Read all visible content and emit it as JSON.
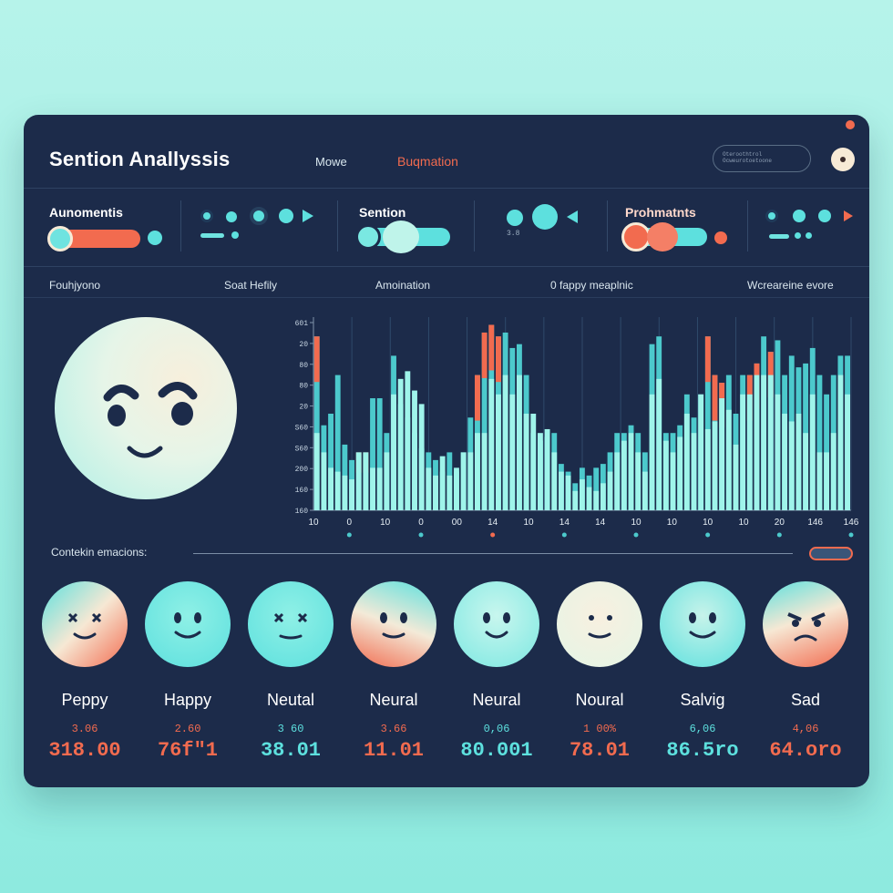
{
  "app": {
    "title": "Sention Anallyssis",
    "nav": [
      "Mowe",
      "Buqmation"
    ],
    "search_placeholder_lines": [
      "Oteroothtrol",
      "Ocweurotoetoone"
    ]
  },
  "controls": {
    "group1": {
      "label": "Aunomentis"
    },
    "group2": {
      "label": "Sention",
      "tiny": "3.8"
    },
    "group3": {
      "label": "Prohmatnts"
    }
  },
  "section_headers": [
    "Fouhjyono",
    "Soat Hefily",
    "Amoination",
    "0 fappy meaplnic",
    "Wcreareine evore"
  ],
  "chart_data": {
    "type": "bar",
    "y_ticks": [
      "601",
      "20",
      "80",
      "80",
      "20",
      "S60",
      "S60",
      "200",
      "160",
      "160"
    ],
    "x_ticks": [
      "10",
      "0",
      "10",
      "0",
      "00",
      "14",
      "10",
      "14",
      "14",
      "10",
      "10",
      "10",
      "10",
      "20",
      "146",
      "146"
    ],
    "ylim": [
      0,
      100
    ],
    "series": [
      {
        "values": [
          40,
          30,
          22,
          20,
          18,
          16,
          30,
          30,
          22,
          22,
          30,
          60,
          68,
          72,
          62,
          55,
          22,
          18,
          28,
          18,
          22,
          30,
          30,
          40,
          40,
          68,
          60,
          70,
          60,
          70,
          50,
          50,
          40,
          42,
          30,
          20,
          18,
          10,
          16,
          12,
          10,
          14,
          20,
          30,
          36,
          40,
          30,
          20,
          60,
          68,
          36,
          30,
          38,
          50,
          40,
          60,
          42,
          46,
          58,
          52,
          34,
          60,
          60,
          70,
          70,
          70,
          60,
          50,
          46,
          50,
          40,
          60,
          30,
          30,
          40,
          70,
          60
        ]
      },
      {
        "values": [
          90,
          44,
          50,
          70,
          34,
          26,
          30,
          30,
          58,
          58,
          40,
          80,
          55,
          48,
          40,
          32,
          30,
          26,
          20,
          30,
          20,
          30,
          48,
          70,
          92,
          96,
          90,
          92,
          84,
          86,
          70,
          40,
          36,
          38,
          40,
          24,
          20,
          14,
          22,
          18,
          22,
          24,
          30,
          40,
          40,
          44,
          40,
          30,
          86,
          90,
          40,
          40,
          44,
          60,
          48,
          60,
          90,
          70,
          66,
          70,
          50,
          70,
          70,
          76,
          90,
          82,
          88,
          70,
          80,
          74,
          76,
          84,
          70,
          60,
          70,
          80,
          80
        ]
      }
    ],
    "highlights": [
      0,
      6,
      7,
      23,
      24,
      25,
      26,
      56,
      57,
      58,
      62,
      63,
      65
    ]
  },
  "detection": {
    "label": "Contekin emacions:"
  },
  "emotions": [
    {
      "name": "Peppy",
      "small": "3.06",
      "big": "318.00",
      "tone": "orange"
    },
    {
      "name": "Happy",
      "small": "2.60",
      "big": "76f\"1",
      "tone": "orange"
    },
    {
      "name": "Neutal",
      "small": "3 60",
      "big": "38.01",
      "tone": "teal"
    },
    {
      "name": "Neural",
      "small": "3.66",
      "big": "11.01",
      "tone": "orange"
    },
    {
      "name": "Neural",
      "small": "0,06",
      "big": "80.001",
      "tone": "teal"
    },
    {
      "name": "Noural",
      "small": "1 00%",
      "big": "78.01",
      "tone": "orange"
    },
    {
      "name": "Salvig",
      "small": "6,06",
      "big": "86.5ro",
      "tone": "teal"
    },
    {
      "name": "Sad",
      "small": "4,06",
      "big": "64.oro",
      "tone": "orange"
    }
  ],
  "colors": {
    "bg": "#1c2b4a",
    "teal": "#5de0de",
    "orange": "#f26b4f",
    "cream": "#f7ead6"
  }
}
